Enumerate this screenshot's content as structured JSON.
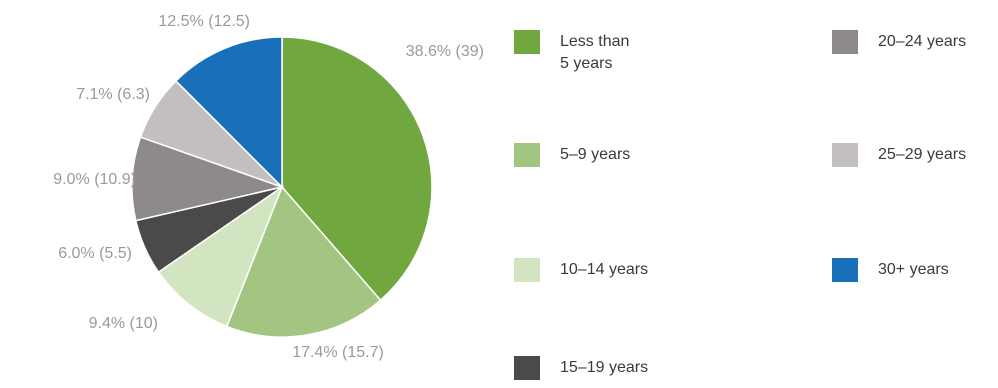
{
  "chart_data": {
    "type": "pie",
    "slices": [
      {
        "name": "Less than 5 years",
        "label_lines": [
          "Less than",
          "5 years"
        ],
        "value": 38.6,
        "display": "38.6% (39)",
        "color": "#70a83f"
      },
      {
        "name": "5–9 years",
        "label_lines": [
          "5–9 years"
        ],
        "value": 17.4,
        "display": "17.4% (15.7)",
        "color": "#a3c582"
      },
      {
        "name": "10–14 years",
        "label_lines": [
          "10–14 years"
        ],
        "value": 9.4,
        "display": "9.4% (10)",
        "color": "#d3e5c0"
      },
      {
        "name": "15–19 years",
        "label_lines": [
          "15–19 years"
        ],
        "value": 6.0,
        "display": "6.0% (5.5)",
        "color": "#4a4a4a"
      },
      {
        "name": "20–24 years",
        "label_lines": [
          "20–24 years"
        ],
        "value": 9.0,
        "display": "9.0% (10.9)",
        "color": "#8f8a8a"
      },
      {
        "name": "25–29 years",
        "label_lines": [
          "25–29 years"
        ],
        "value": 7.1,
        "display": "7.1% (6.3)",
        "color": "#c3bfbf"
      },
      {
        "name": "30+ years",
        "label_lines": [
          "30+ years"
        ],
        "value": 12.5,
        "display": "12.5% (12.5)",
        "color": "#1a6fba"
      }
    ],
    "start_angle": "12 o'clock",
    "direction": "clockwise",
    "legend_position": "right"
  }
}
